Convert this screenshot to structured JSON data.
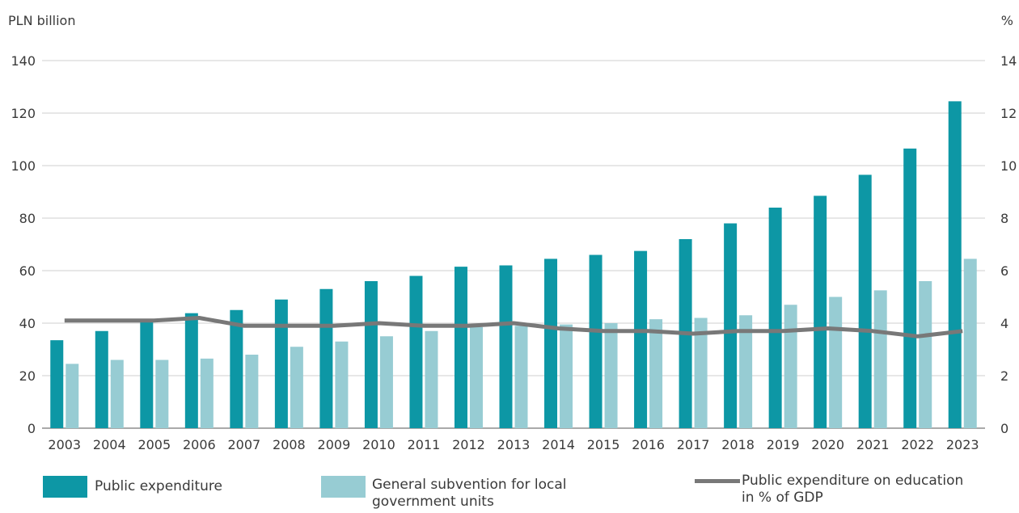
{
  "chart_data": {
    "type": "bar",
    "y_left_unit": "PLN billion",
    "y_right_unit": "%",
    "ylim_left": [
      0,
      140
    ],
    "ylim_right": [
      0,
      14
    ],
    "y_left_ticks": [
      "0",
      "20",
      "40",
      "60",
      "80",
      "100",
      "120",
      "140"
    ],
    "y_right_ticks": [
      "0",
      "2",
      "4",
      "6",
      "8",
      "10",
      "12",
      "14"
    ],
    "grid": true,
    "legend_position": "bottom",
    "categories": [
      "2003",
      "2004",
      "2005",
      "2006",
      "2007",
      "2008",
      "2009",
      "2010",
      "2011",
      "2012",
      "2013",
      "2014",
      "2015",
      "2016",
      "2017",
      "2018",
      "2019",
      "2020",
      "2021",
      "2022",
      "2023"
    ],
    "series": [
      {
        "name": "Public expenditure",
        "type": "bar",
        "axis": "left",
        "color": "#0d97a5",
        "values": [
          33.5,
          37,
          40.5,
          43.8,
          45,
          49,
          53,
          56,
          58,
          61.5,
          62,
          64.5,
          66,
          67.5,
          72,
          78,
          84,
          88.5,
          96.5,
          106.5,
          124.5
        ]
      },
      {
        "name": "General subvention for local government units",
        "type": "bar",
        "axis": "left",
        "color": "#97ccd3",
        "values": [
          24.5,
          26,
          26,
          26.5,
          28,
          31,
          33,
          35,
          37,
          38.5,
          39,
          39.5,
          40,
          41.5,
          42,
          43,
          47,
          50,
          52.5,
          56,
          64.5
        ]
      },
      {
        "name": "Public expenditure on education in % of GDP",
        "type": "line",
        "axis": "right",
        "color": "#787878",
        "values": [
          4.1,
          4.1,
          4.1,
          4.2,
          3.9,
          3.9,
          3.9,
          4.0,
          3.9,
          3.9,
          4.0,
          3.8,
          3.7,
          3.7,
          3.6,
          3.7,
          3.7,
          3.8,
          3.7,
          3.5,
          3.7
        ]
      }
    ]
  },
  "legend": {
    "items": [
      {
        "label_line1": "Public expenditure",
        "label_line2": ""
      },
      {
        "label_line1": "General subvention for local",
        "label_line2": "government units"
      },
      {
        "label_line1": "Public expenditure on education",
        "label_line2": "in % of GDP"
      }
    ]
  }
}
